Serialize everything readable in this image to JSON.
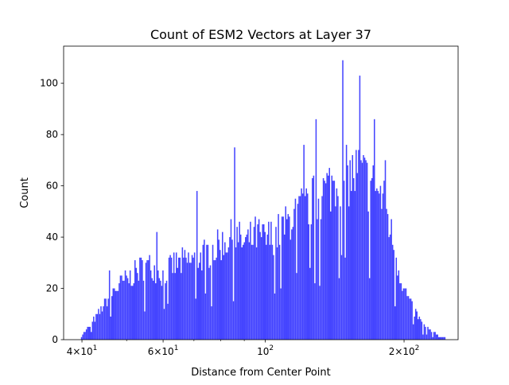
{
  "chart_data": {
    "type": "bar",
    "title": "Count of ESM2 Vectors at Layer 37",
    "xlabel": "Distance from Center Point",
    "ylabel": "Count",
    "x_scale": "log",
    "xlim": [
      36.5,
      262
    ],
    "ylim": [
      0,
      114.5
    ],
    "x_ticks": [
      {
        "value": 40,
        "base": "4×10",
        "exp": "1"
      },
      {
        "value": 60,
        "base": "6×10",
        "exp": "1"
      },
      {
        "value": 100,
        "base": "10",
        "exp": "2"
      },
      {
        "value": 200,
        "base": "2×10",
        "exp": "2"
      }
    ],
    "y_ticks": [
      0,
      20,
      40,
      60,
      80,
      100
    ],
    "grid": false,
    "legend": "none",
    "bar_color": "#4444ff",
    "bins": {
      "x_start": 39.8,
      "x_end": 246,
      "count": 300,
      "scale": "log"
    },
    "envelope": {
      "x": [
        39.8,
        41,
        43,
        45,
        47,
        50,
        53,
        56,
        60,
        63,
        67,
        70,
        75,
        80,
        86,
        90,
        95,
        100,
        105,
        110,
        115,
        120,
        125,
        130,
        135,
        140,
        145,
        150,
        155,
        160,
        165,
        170,
        175,
        180,
        185,
        190,
        195,
        200,
        210,
        220,
        230,
        240,
        246
      ],
      "y": [
        1,
        4,
        9,
        15,
        20,
        24,
        28,
        30,
        26,
        30,
        31,
        32,
        35,
        38,
        42,
        38,
        42,
        40,
        42,
        45,
        50,
        52,
        55,
        57,
        60,
        63,
        66,
        66,
        66,
        68,
        64,
        62,
        60,
        56,
        48,
        38,
        28,
        20,
        12,
        6,
        3,
        1,
        1
      ]
    },
    "peaks": [
      {
        "x": 46,
        "y": 27
      },
      {
        "x": 58,
        "y": 42
      },
      {
        "x": 71,
        "y": 58
      },
      {
        "x": 86,
        "y": 75
      },
      {
        "x": 121,
        "y": 76
      },
      {
        "x": 129,
        "y": 86
      },
      {
        "x": 147,
        "y": 109
      },
      {
        "x": 160,
        "y": 103
      },
      {
        "x": 172,
        "y": 86
      },
      {
        "x": 182,
        "y": 70
      }
    ]
  }
}
